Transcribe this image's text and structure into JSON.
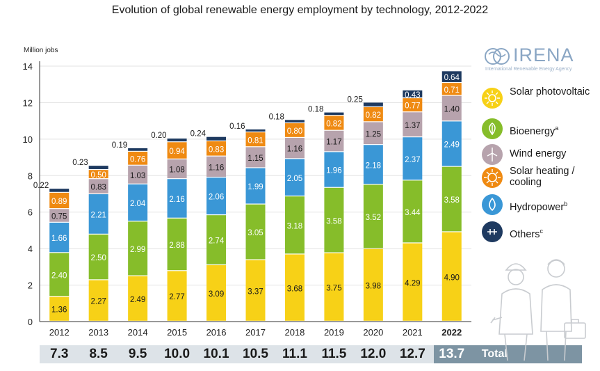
{
  "chart_data": {
    "type": "bar",
    "stacked": true,
    "title": "Evolution of global renewable energy employment by technology, 2012-2022",
    "ylabel": "Million jobs",
    "ylim": [
      0,
      14
    ],
    "yticks": [
      "0",
      "2",
      "4",
      "6",
      "8",
      "10",
      "12",
      "14"
    ],
    "grid": true,
    "legend_placement": "right",
    "categories": [
      "2012",
      "2013",
      "2014",
      "2015",
      "2016",
      "2017",
      "2018",
      "2019",
      "2020",
      "2021",
      "2022"
    ],
    "highlight_category": "2022",
    "series": [
      {
        "name": "Solar photovoltaic",
        "color": "#f7d117",
        "icon": "sun-icon",
        "values": [
          1.36,
          2.27,
          2.49,
          2.77,
          3.09,
          3.37,
          3.68,
          3.75,
          3.98,
          4.29,
          4.9
        ],
        "labels": [
          "1.36",
          "2.27",
          "2.49",
          "2.77",
          "3.09",
          "3.37",
          "3.68",
          "3.75",
          "3.98",
          "4.29",
          "4.90"
        ]
      },
      {
        "name": "Bioenergy",
        "sup": "a",
        "color": "#86bd2a",
        "icon": "leaf-icon",
        "values": [
          2.4,
          2.5,
          2.99,
          2.88,
          2.74,
          3.05,
          3.18,
          3.58,
          3.52,
          3.44,
          3.58
        ],
        "labels": [
          "2.40",
          "2.50",
          "2.99",
          "2.88",
          "2.74",
          "3.05",
          "3.18",
          "3.58",
          "3.52",
          "3.44",
          "3.58"
        ]
      },
      {
        "name": "Hydropower",
        "sup": "b",
        "color": "#3a97d6",
        "icon": "water-drop-icon",
        "values": [
          1.66,
          2.21,
          2.04,
          2.16,
          2.06,
          1.99,
          2.05,
          1.96,
          2.18,
          2.37,
          2.49
        ],
        "labels": [
          "1.66",
          "2.21",
          "2.04",
          "2.16",
          "2.06",
          "1.99",
          "2.05",
          "1.96",
          "2.18",
          "2.37",
          "2.49"
        ]
      },
      {
        "name": "Wind energy",
        "color": "#b7a3ad",
        "icon": "wind-turbine-icon",
        "values": [
          0.75,
          0.83,
          1.03,
          1.08,
          1.16,
          1.15,
          1.16,
          1.17,
          1.25,
          1.37,
          1.4
        ],
        "labels": [
          "0.75",
          "0.83",
          "1.03",
          "1.08",
          "1.16",
          "1.15",
          "1.16",
          "1.17",
          "1.25",
          "1.37",
          "1.40"
        ]
      },
      {
        "name": "Solar heating / cooling",
        "color": "#ef8a12",
        "icon": "sun-heat-icon",
        "values": [
          0.89,
          0.5,
          0.76,
          0.94,
          0.83,
          0.81,
          0.8,
          0.82,
          0.82,
          0.77,
          0.71
        ],
        "labels": [
          "0.89",
          "0.50",
          "0.76",
          "0.94",
          "0.83",
          "0.81",
          "0.80",
          "0.82",
          "0.82",
          "0.77",
          "0.71"
        ]
      },
      {
        "name": "Others",
        "sup": "c",
        "color": "#1e3a60",
        "icon": "plug-icon",
        "values": [
          0.22,
          0.23,
          0.19,
          0.2,
          0.24,
          0.16,
          0.18,
          0.18,
          0.25,
          0.43,
          0.64
        ],
        "labels": [
          "0.22",
          "0.23",
          "0.19",
          "0.20",
          "0.24",
          "0.16",
          "0.18",
          "0.18",
          "0.25",
          "0.43",
          "0.64"
        ]
      }
    ],
    "legend_order": [
      "Solar photovoltaic",
      "Bioenergy",
      "Wind energy",
      "Solar heating / cooling",
      "Hydropower",
      "Others"
    ],
    "totals": [
      "7.3",
      "8.5",
      "9.5",
      "10.0",
      "10.1",
      "10.5",
      "11.1",
      "11.5",
      "12.0",
      "12.7",
      "13.7"
    ],
    "totals_label": "Total"
  },
  "logo": {
    "name": "IRENA",
    "tagline": "International Renewable Energy Agency"
  }
}
